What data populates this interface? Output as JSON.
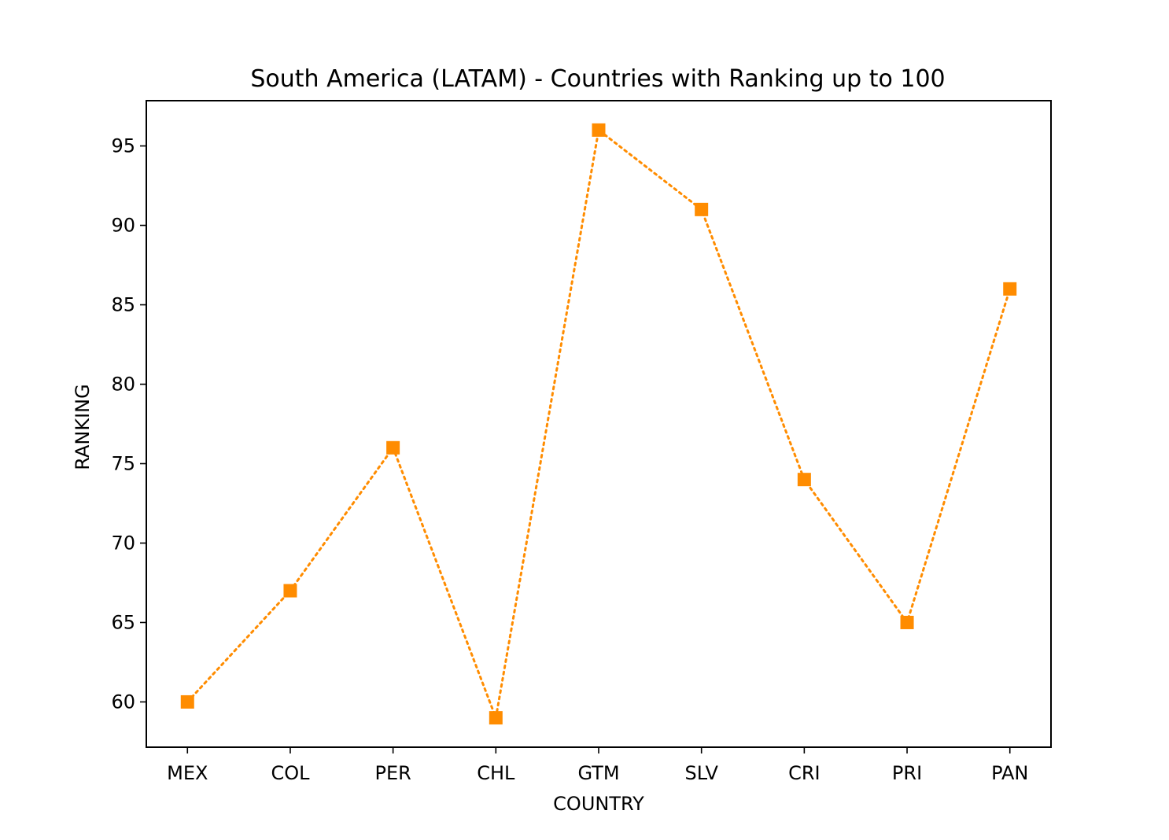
{
  "chart_data": {
    "type": "line",
    "title": "South America (LATAM) - Countries with Ranking up to 100",
    "xlabel": "COUNTRY",
    "ylabel": "RANKING",
    "categories": [
      "MEX",
      "COL",
      "PER",
      "CHL",
      "GTM",
      "SLV",
      "CRI",
      "PRI",
      "PAN"
    ],
    "series": [
      {
        "values": [
          60,
          67,
          76,
          59,
          96,
          91,
          74,
          65,
          86
        ]
      }
    ],
    "ylim": [
      57.15,
      97.85
    ],
    "yticks": [
      60,
      65,
      70,
      75,
      80,
      85,
      90,
      95
    ],
    "grid": false,
    "line_style": "dotted",
    "marker": "square",
    "color": "#ff8c00"
  }
}
